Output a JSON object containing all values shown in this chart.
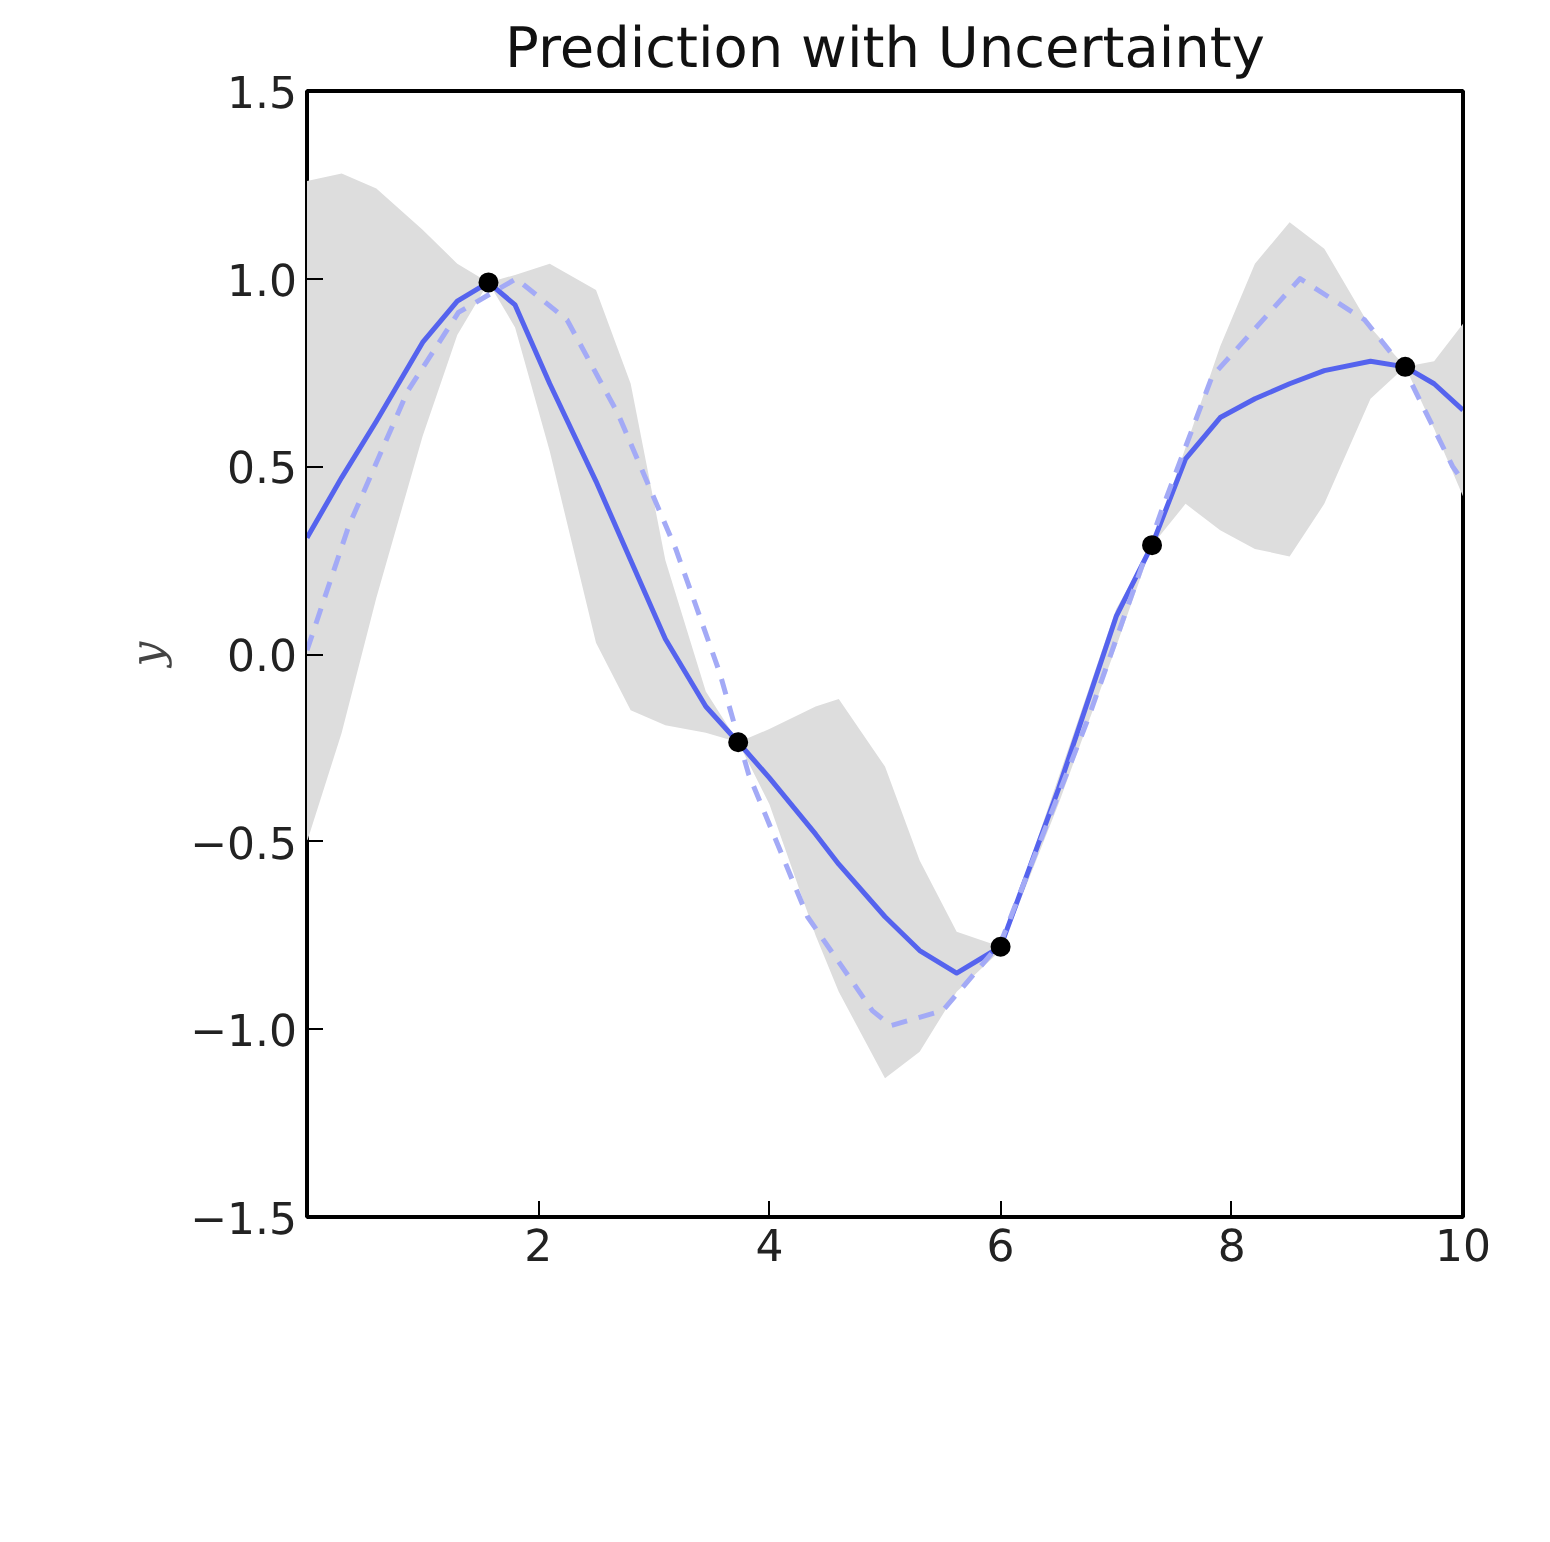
{
  "chart_data": {
    "type": "line",
    "title": "Prediction with Uncertainty",
    "ylabel": "y",
    "xlim": [
      0,
      10
    ],
    "ylim": [
      -1.5,
      1.5
    ],
    "xticks": [
      2,
      4,
      6,
      8,
      10
    ],
    "yticks": [
      1.5,
      {
        "value": 1,
        "label": "1.0"
      },
      0.5,
      {
        "value": 0,
        "label": "0.0"
      },
      -0.5,
      {
        "value": -1,
        "label": "−1.0"
      },
      -1.5
    ],
    "grid": false,
    "series": [
      {
        "type": "line",
        "color": "#5563ee",
        "line_style": "solid",
        "x": [
          0,
          0.3,
          0.6,
          1.0,
          1.3,
          1.57,
          1.8,
          2.1,
          2.5,
          2.8,
          3.1,
          3.45,
          3.73,
          4.0,
          4.4,
          4.6,
          5.0,
          5.3,
          5.62,
          6.0,
          6.5,
          7.0,
          7.31,
          7.6,
          7.9,
          8.2,
          8.5,
          8.8,
          9.2,
          9.5,
          9.75,
          10
        ],
        "values": [
          0.31,
          0.47,
          0.62,
          0.83,
          0.94,
          0.99,
          0.93,
          0.72,
          0.46,
          0.25,
          0.04,
          -0.14,
          -0.235,
          -0.33,
          -0.48,
          -0.56,
          -0.7,
          -0.79,
          -0.85,
          -0.78,
          -0.36,
          0.1,
          0.29,
          0.52,
          0.63,
          0.68,
          0.72,
          0.755,
          0.78,
          0.765,
          0.72,
          0.65
        ],
        "upper": [
          1.26,
          1.28,
          1.24,
          1.13,
          1.04,
          0.99,
          1.01,
          1.04,
          0.97,
          0.72,
          0.25,
          -0.1,
          -0.235,
          -0.2,
          -0.14,
          -0.12,
          -0.3,
          -0.55,
          -0.74,
          -0.78,
          -0.33,
          0.12,
          0.29,
          0.55,
          0.82,
          1.04,
          1.15,
          1.08,
          0.87,
          0.765,
          0.78,
          0.88
        ],
        "lower": [
          -0.5,
          -0.21,
          0.15,
          0.58,
          0.85,
          0.99,
          0.87,
          0.54,
          0.03,
          -0.15,
          -0.19,
          -0.21,
          -0.235,
          -0.4,
          -0.75,
          -0.9,
          -1.13,
          -1.06,
          -0.9,
          -0.79,
          -0.4,
          0.02,
          0.29,
          0.4,
          0.33,
          0.28,
          0.26,
          0.4,
          0.68,
          0.765,
          0.6,
          0.42
        ]
      },
      {
        "type": "line",
        "color": "#a3aaf6",
        "line_style": "dashed",
        "x": [
          0,
          0.36,
          0.87,
          1.31,
          1.81,
          2.25,
          2.69,
          3.19,
          3.57,
          3.82,
          4.33,
          4.89,
          5.05,
          5.5,
          6.0,
          6.76,
          7.39,
          7.83,
          8.59,
          9.15,
          9.5,
          9.91,
          10
        ],
        "values": [
          0.01,
          0.34,
          0.7,
          0.91,
          1.0,
          0.89,
          0.64,
          0.28,
          -0.05,
          -0.32,
          -0.7,
          -0.95,
          -0.99,
          -0.95,
          -0.77,
          -0.17,
          0.38,
          0.74,
          1.0,
          0.89,
          0.755,
          0.5,
          0.46
        ]
      },
      {
        "type": "scatter",
        "marker": "circle",
        "color": "#000000",
        "x": [
          1.57,
          3.73,
          6.0,
          7.31,
          9.5
        ],
        "values": [
          0.99,
          -0.235,
          -0.78,
          0.29,
          0.765
        ]
      }
    ]
  }
}
